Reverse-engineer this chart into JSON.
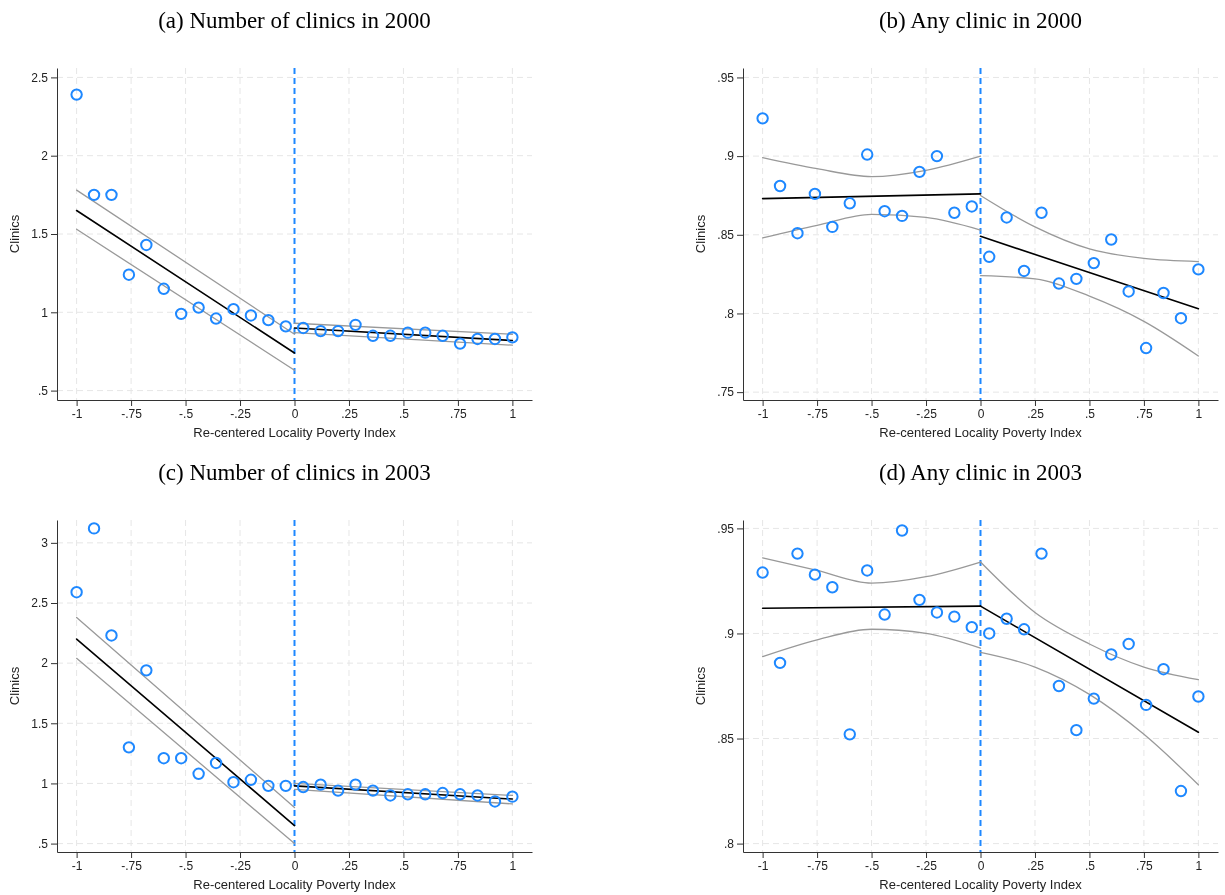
{
  "chart_data": [
    {
      "type": "scatter",
      "title": "(a) Number of clinics in 2000",
      "xlabel": "Re-centered Locality Poverty Index",
      "ylabel": "Clinics",
      "xlim": [
        -1.09,
        1.09
      ],
      "ylim": [
        0.44,
        2.56
      ],
      "xticks": [
        -1,
        {
          "value": -0.75,
          "label": "-.75"
        },
        {
          "value": -0.5,
          "label": "-.5"
        },
        {
          "value": -0.25,
          "label": "-.25"
        },
        0,
        {
          "value": 0.25,
          "label": ".25"
        },
        {
          "value": 0.5,
          "label": ".5"
        },
        {
          "value": 0.75,
          "label": ".75"
        },
        1
      ],
      "yticks": [
        {
          "value": 0.5,
          "label": ".5"
        },
        1,
        1.5,
        2,
        2.5
      ],
      "grid": true,
      "ref_lines": [
        {
          "axis": "x",
          "value": 0,
          "color": "#1e88ff",
          "line_style": "dashed"
        }
      ],
      "series": [
        {
          "marker": "circle",
          "color": "#1e88ff",
          "x": [
            -1,
            -0.92,
            -0.84,
            -0.76,
            -0.68,
            -0.6,
            -0.52,
            -0.44,
            -0.36,
            -0.28,
            -0.2,
            -0.12,
            -0.04,
            0.04,
            0.12,
            0.2,
            0.28,
            0.36,
            0.44,
            0.52,
            0.6,
            0.68,
            0.76,
            0.84,
            0.92,
            1
          ],
          "values": [
            2.39,
            1.75,
            1.75,
            1.24,
            1.43,
            1.15,
            0.99,
            1.03,
            0.96,
            1.02,
            0.98,
            0.95,
            0.91,
            0.9,
            0.88,
            0.88,
            0.92,
            0.85,
            0.85,
            0.87,
            0.87,
            0.85,
            0.8,
            0.83,
            0.83,
            0.84
          ]
        },
        {
          "type": "line",
          "color": "#000000",
          "x": [
            -1,
            0
          ],
          "values": [
            1.65,
            0.74
          ]
        },
        {
          "type": "line",
          "color": "#999999",
          "x": [
            -1,
            0
          ],
          "values": [
            1.78,
            0.86
          ]
        },
        {
          "type": "line",
          "color": "#999999",
          "x": [
            -1,
            0
          ],
          "values": [
            1.53,
            0.63
          ]
        },
        {
          "type": "line",
          "color": "#000000",
          "x": [
            0,
            1
          ],
          "values": [
            0.9,
            0.82
          ]
        },
        {
          "type": "line",
          "color": "#999999",
          "x": [
            0,
            1
          ],
          "values": [
            0.93,
            0.86
          ]
        },
        {
          "type": "line",
          "color": "#999999",
          "x": [
            0,
            1
          ],
          "values": [
            0.87,
            0.79
          ]
        }
      ]
    },
    {
      "type": "scatter",
      "title": "(b) Any clinic in 2000",
      "xlabel": "Re-centered Locality Poverty Index",
      "ylabel": "Clinics",
      "xlim": [
        -1.09,
        1.09
      ],
      "ylim": [
        0.745,
        0.956
      ],
      "xticks": [
        -1,
        {
          "value": -0.75,
          "label": "-.75"
        },
        {
          "value": -0.5,
          "label": "-.5"
        },
        {
          "value": -0.25,
          "label": "-.25"
        },
        0,
        {
          "value": 0.25,
          "label": ".25"
        },
        {
          "value": 0.5,
          "label": ".5"
        },
        {
          "value": 0.75,
          "label": ".75"
        },
        1
      ],
      "yticks": [
        {
          "value": 0.75,
          "label": ".75"
        },
        {
          "value": 0.8,
          "label": ".8"
        },
        {
          "value": 0.85,
          "label": ".85"
        },
        {
          "value": 0.9,
          "label": ".9"
        },
        {
          "value": 0.95,
          "label": ".95"
        }
      ],
      "grid": true,
      "ref_lines": [
        {
          "axis": "x",
          "value": 0,
          "color": "#1e88ff",
          "line_style": "dashed"
        }
      ],
      "series": [
        {
          "marker": "circle",
          "color": "#1e88ff",
          "x": [
            -1,
            -0.92,
            -0.84,
            -0.76,
            -0.68,
            -0.6,
            -0.52,
            -0.44,
            -0.36,
            -0.28,
            -0.2,
            -0.12,
            -0.04,
            0.04,
            0.12,
            0.2,
            0.28,
            0.36,
            0.44,
            0.52,
            0.6,
            0.68,
            0.76,
            0.84,
            0.92,
            1
          ],
          "values": [
            0.924,
            0.881,
            0.851,
            0.876,
            0.855,
            0.87,
            0.901,
            0.865,
            0.862,
            0.89,
            0.9,
            0.864,
            0.868,
            0.836,
            0.861,
            0.827,
            0.864,
            0.819,
            0.822,
            0.832,
            0.847,
            0.814,
            0.778,
            0.813,
            0.797,
            0.828
          ]
        },
        {
          "type": "line",
          "color": "#000000",
          "x": [
            -1,
            0
          ],
          "values": [
            0.873,
            0.876
          ]
        },
        {
          "type": "line",
          "color": "#999999",
          "x": [
            -1,
            -0.75,
            -0.5,
            -0.25,
            0
          ],
          "values": [
            0.899,
            0.892,
            0.887,
            0.891,
            0.9
          ]
        },
        {
          "type": "line",
          "color": "#999999",
          "x": [
            -1,
            -0.75,
            -0.5,
            -0.25,
            0
          ],
          "values": [
            0.848,
            0.856,
            0.863,
            0.861,
            0.853
          ]
        },
        {
          "type": "line",
          "color": "#000000",
          "x": [
            0,
            1
          ],
          "values": [
            0.849,
            0.803
          ]
        },
        {
          "type": "line",
          "color": "#999999",
          "x": [
            0,
            0.25,
            0.5,
            0.75,
            1
          ],
          "values": [
            0.875,
            0.855,
            0.841,
            0.835,
            0.833
          ]
        },
        {
          "type": "line",
          "color": "#999999",
          "x": [
            0,
            0.25,
            0.5,
            0.75,
            1
          ],
          "values": [
            0.824,
            0.822,
            0.811,
            0.795,
            0.773
          ]
        }
      ]
    },
    {
      "type": "scatter",
      "title": "(c) Number of clinics in 2003",
      "xlabel": "Re-centered Locality Poverty Index",
      "ylabel": "Clinics",
      "xlim": [
        -1.09,
        1.09
      ],
      "ylim": [
        0.43,
        3.19
      ],
      "xticks": [
        -1,
        {
          "value": -0.75,
          "label": "-.75"
        },
        {
          "value": -0.5,
          "label": "-.5"
        },
        {
          "value": -0.25,
          "label": "-.25"
        },
        0,
        {
          "value": 0.25,
          "label": ".25"
        },
        {
          "value": 0.5,
          "label": ".5"
        },
        {
          "value": 0.75,
          "label": ".75"
        },
        1
      ],
      "yticks": [
        {
          "value": 0.5,
          "label": ".5"
        },
        1,
        1.5,
        2,
        2.5,
        3
      ],
      "grid": true,
      "ref_lines": [
        {
          "axis": "x",
          "value": 0,
          "color": "#1e88ff",
          "line_style": "dashed"
        }
      ],
      "series": [
        {
          "marker": "circle",
          "color": "#1e88ff",
          "x": [
            -1,
            -0.92,
            -0.84,
            -0.76,
            -0.68,
            -0.6,
            -0.52,
            -0.44,
            -0.36,
            -0.28,
            -0.2,
            -0.12,
            -0.04,
            0.04,
            0.12,
            0.2,
            0.28,
            0.36,
            0.44,
            0.52,
            0.6,
            0.68,
            0.76,
            0.84,
            0.92,
            1
          ],
          "values": [
            2.59,
            3.12,
            2.23,
            1.3,
            1.94,
            1.21,
            1.21,
            1.08,
            1.17,
            1.01,
            1.03,
            0.98,
            0.98,
            0.97,
            0.99,
            0.94,
            0.99,
            0.94,
            0.9,
            0.91,
            0.91,
            0.92,
            0.91,
            0.9,
            0.85,
            0.89
          ]
        },
        {
          "type": "line",
          "color": "#000000",
          "x": [
            -1,
            0
          ],
          "values": [
            2.2,
            0.65
          ]
        },
        {
          "type": "line",
          "color": "#999999",
          "x": [
            -1,
            0
          ],
          "values": [
            2.38,
            0.8
          ]
        },
        {
          "type": "line",
          "color": "#999999",
          "x": [
            -1,
            0
          ],
          "values": [
            2.04,
            0.5
          ]
        },
        {
          "type": "line",
          "color": "#000000",
          "x": [
            0,
            1
          ],
          "values": [
            0.98,
            0.87
          ]
        },
        {
          "type": "line",
          "color": "#999999",
          "x": [
            0,
            1
          ],
          "values": [
            1.0,
            0.9
          ]
        },
        {
          "type": "line",
          "color": "#999999",
          "x": [
            0,
            1
          ],
          "values": [
            0.95,
            0.83
          ]
        }
      ]
    },
    {
      "type": "scatter",
      "title": "(d) Any clinic in 2003",
      "xlabel": "Re-centered Locality Poverty Index",
      "ylabel": "Clinics",
      "xlim": [
        -1.09,
        1.09
      ],
      "ylim": [
        0.796,
        0.954
      ],
      "xticks": [
        -1,
        {
          "value": -0.75,
          "label": "-.75"
        },
        {
          "value": -0.5,
          "label": "-.5"
        },
        {
          "value": -0.25,
          "label": "-.25"
        },
        0,
        {
          "value": 0.25,
          "label": ".25"
        },
        {
          "value": 0.5,
          "label": ".5"
        },
        {
          "value": 0.75,
          "label": ".75"
        },
        1
      ],
      "yticks": [
        {
          "value": 0.8,
          "label": ".8"
        },
        {
          "value": 0.85,
          "label": ".85"
        },
        {
          "value": 0.9,
          "label": ".9"
        },
        {
          "value": 0.95,
          "label": ".95"
        }
      ],
      "grid": true,
      "ref_lines": [
        {
          "axis": "x",
          "value": 0,
          "color": "#1e88ff",
          "line_style": "dashed"
        }
      ],
      "series": [
        {
          "marker": "circle",
          "color": "#1e88ff",
          "x": [
            -1,
            -0.92,
            -0.84,
            -0.76,
            -0.68,
            -0.6,
            -0.52,
            -0.44,
            -0.36,
            -0.28,
            -0.2,
            -0.12,
            -0.04,
            0.04,
            0.12,
            0.2,
            0.28,
            0.36,
            0.44,
            0.52,
            0.6,
            0.68,
            0.76,
            0.84,
            0.92,
            1
          ],
          "values": [
            0.929,
            0.886,
            0.938,
            0.928,
            0.922,
            0.852,
            0.93,
            0.909,
            0.949,
            0.916,
            0.91,
            0.908,
            0.903,
            0.9,
            0.907,
            0.902,
            0.938,
            0.875,
            0.854,
            0.869,
            0.89,
            0.895,
            0.866,
            0.883,
            0.825,
            0.87
          ]
        },
        {
          "type": "line",
          "color": "#000000",
          "x": [
            -1,
            0
          ],
          "values": [
            0.912,
            0.913
          ]
        },
        {
          "type": "line",
          "color": "#999999",
          "x": [
            -1,
            -0.75,
            -0.5,
            -0.25,
            0
          ],
          "values": [
            0.936,
            0.93,
            0.924,
            0.927,
            0.934
          ]
        },
        {
          "type": "line",
          "color": "#999999",
          "x": [
            -1,
            -0.75,
            -0.5,
            -0.25,
            0
          ],
          "values": [
            0.889,
            0.897,
            0.902,
            0.9,
            0.893
          ]
        },
        {
          "type": "line",
          "color": "#000000",
          "x": [
            0,
            1
          ],
          "values": [
            0.913,
            0.853
          ]
        },
        {
          "type": "line",
          "color": "#999999",
          "x": [
            0,
            0.25,
            0.5,
            0.75,
            1
          ],
          "values": [
            0.934,
            0.91,
            0.895,
            0.884,
            0.878
          ]
        },
        {
          "type": "line",
          "color": "#999999",
          "x": [
            0,
            0.25,
            0.5,
            0.75,
            1
          ],
          "values": [
            0.891,
            0.884,
            0.871,
            0.852,
            0.828
          ]
        }
      ]
    }
  ]
}
